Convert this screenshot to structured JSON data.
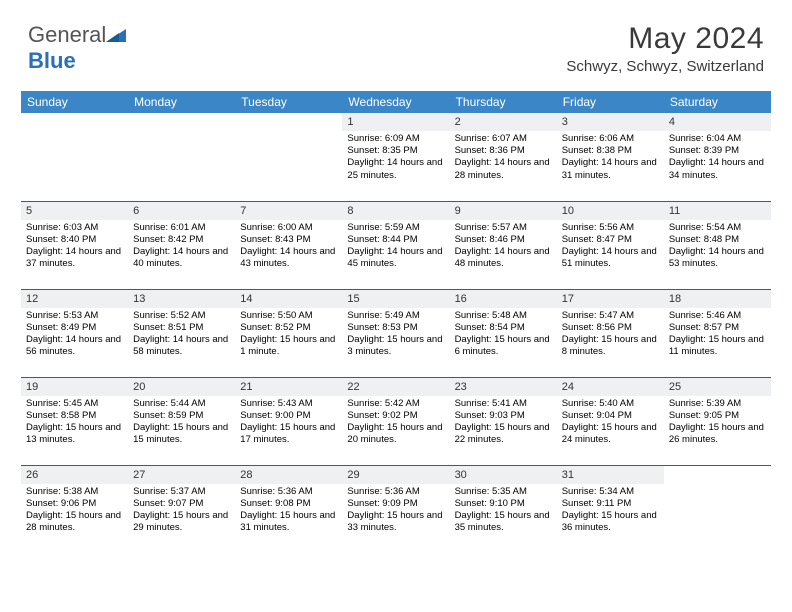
{
  "brand": {
    "part1": "General",
    "part2": "Blue"
  },
  "title": "May 2024",
  "location": "Schwyz, Schwyz, Switzerland",
  "colors": {
    "header_bg": "#3b86c6",
    "header_text": "#ffffff",
    "daynum_bg": "#eef0f1",
    "rule": "#2e5f8e",
    "brand_blue": "#2871b8",
    "brand_gray": "#555555"
  },
  "dayHeaders": [
    "Sunday",
    "Monday",
    "Tuesday",
    "Wednesday",
    "Thursday",
    "Friday",
    "Saturday"
  ],
  "weeks": [
    [
      null,
      null,
      null,
      {
        "n": "1",
        "sunrise": "6:09 AM",
        "sunset": "8:35 PM",
        "daylight": "14 hours and 25 minutes."
      },
      {
        "n": "2",
        "sunrise": "6:07 AM",
        "sunset": "8:36 PM",
        "daylight": "14 hours and 28 minutes."
      },
      {
        "n": "3",
        "sunrise": "6:06 AM",
        "sunset": "8:38 PM",
        "daylight": "14 hours and 31 minutes."
      },
      {
        "n": "4",
        "sunrise": "6:04 AM",
        "sunset": "8:39 PM",
        "daylight": "14 hours and 34 minutes."
      }
    ],
    [
      {
        "n": "5",
        "sunrise": "6:03 AM",
        "sunset": "8:40 PM",
        "daylight": "14 hours and 37 minutes."
      },
      {
        "n": "6",
        "sunrise": "6:01 AM",
        "sunset": "8:42 PM",
        "daylight": "14 hours and 40 minutes."
      },
      {
        "n": "7",
        "sunrise": "6:00 AM",
        "sunset": "8:43 PM",
        "daylight": "14 hours and 43 minutes."
      },
      {
        "n": "8",
        "sunrise": "5:59 AM",
        "sunset": "8:44 PM",
        "daylight": "14 hours and 45 minutes."
      },
      {
        "n": "9",
        "sunrise": "5:57 AM",
        "sunset": "8:46 PM",
        "daylight": "14 hours and 48 minutes."
      },
      {
        "n": "10",
        "sunrise": "5:56 AM",
        "sunset": "8:47 PM",
        "daylight": "14 hours and 51 minutes."
      },
      {
        "n": "11",
        "sunrise": "5:54 AM",
        "sunset": "8:48 PM",
        "daylight": "14 hours and 53 minutes."
      }
    ],
    [
      {
        "n": "12",
        "sunrise": "5:53 AM",
        "sunset": "8:49 PM",
        "daylight": "14 hours and 56 minutes."
      },
      {
        "n": "13",
        "sunrise": "5:52 AM",
        "sunset": "8:51 PM",
        "daylight": "14 hours and 58 minutes."
      },
      {
        "n": "14",
        "sunrise": "5:50 AM",
        "sunset": "8:52 PM",
        "daylight": "15 hours and 1 minute."
      },
      {
        "n": "15",
        "sunrise": "5:49 AM",
        "sunset": "8:53 PM",
        "daylight": "15 hours and 3 minutes."
      },
      {
        "n": "16",
        "sunrise": "5:48 AM",
        "sunset": "8:54 PM",
        "daylight": "15 hours and 6 minutes."
      },
      {
        "n": "17",
        "sunrise": "5:47 AM",
        "sunset": "8:56 PM",
        "daylight": "15 hours and 8 minutes."
      },
      {
        "n": "18",
        "sunrise": "5:46 AM",
        "sunset": "8:57 PM",
        "daylight": "15 hours and 11 minutes."
      }
    ],
    [
      {
        "n": "19",
        "sunrise": "5:45 AM",
        "sunset": "8:58 PM",
        "daylight": "15 hours and 13 minutes."
      },
      {
        "n": "20",
        "sunrise": "5:44 AM",
        "sunset": "8:59 PM",
        "daylight": "15 hours and 15 minutes."
      },
      {
        "n": "21",
        "sunrise": "5:43 AM",
        "sunset": "9:00 PM",
        "daylight": "15 hours and 17 minutes."
      },
      {
        "n": "22",
        "sunrise": "5:42 AM",
        "sunset": "9:02 PM",
        "daylight": "15 hours and 20 minutes."
      },
      {
        "n": "23",
        "sunrise": "5:41 AM",
        "sunset": "9:03 PM",
        "daylight": "15 hours and 22 minutes."
      },
      {
        "n": "24",
        "sunrise": "5:40 AM",
        "sunset": "9:04 PM",
        "daylight": "15 hours and 24 minutes."
      },
      {
        "n": "25",
        "sunrise": "5:39 AM",
        "sunset": "9:05 PM",
        "daylight": "15 hours and 26 minutes."
      }
    ],
    [
      {
        "n": "26",
        "sunrise": "5:38 AM",
        "sunset": "9:06 PM",
        "daylight": "15 hours and 28 minutes."
      },
      {
        "n": "27",
        "sunrise": "5:37 AM",
        "sunset": "9:07 PM",
        "daylight": "15 hours and 29 minutes."
      },
      {
        "n": "28",
        "sunrise": "5:36 AM",
        "sunset": "9:08 PM",
        "daylight": "15 hours and 31 minutes."
      },
      {
        "n": "29",
        "sunrise": "5:36 AM",
        "sunset": "9:09 PM",
        "daylight": "15 hours and 33 minutes."
      },
      {
        "n": "30",
        "sunrise": "5:35 AM",
        "sunset": "9:10 PM",
        "daylight": "15 hours and 35 minutes."
      },
      {
        "n": "31",
        "sunrise": "5:34 AM",
        "sunset": "9:11 PM",
        "daylight": "15 hours and 36 minutes."
      },
      null
    ]
  ],
  "labels": {
    "sunrise": "Sunrise:",
    "sunset": "Sunset:",
    "daylight": "Daylight:"
  }
}
